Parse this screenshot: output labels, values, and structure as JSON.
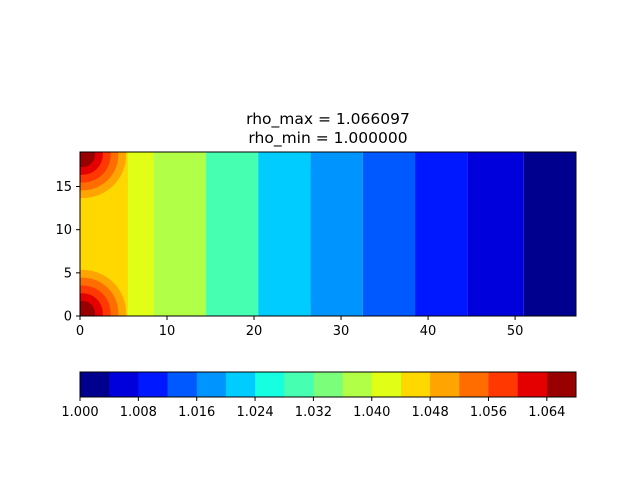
{
  "chart_data": {
    "type": "heatmap",
    "subtype": "filled-contour",
    "title_lines": [
      "rho_max = 1.066097",
      "rho_min = 1.000000"
    ],
    "xlabel": "",
    "ylabel": "",
    "xlim": [
      0,
      57
    ],
    "ylim": [
      0,
      19
    ],
    "x_ticks": [
      0,
      10,
      20,
      30,
      40,
      50
    ],
    "y_ticks": [
      0,
      5,
      10,
      15
    ],
    "colormap": "jet",
    "levels": [
      1.0,
      1.004,
      1.008,
      1.012,
      1.016,
      1.02,
      1.024,
      1.028,
      1.032,
      1.036,
      1.04,
      1.044,
      1.048,
      1.052,
      1.056,
      1.06,
      1.064,
      1.068
    ],
    "level_colors": [
      "#00008f",
      "#0000dd",
      "#0018ff",
      "#0058ff",
      "#0094ff",
      "#00ccff",
      "#16ffe1",
      "#46ffb1",
      "#7bff7b",
      "#b1ff46",
      "#e1ff16",
      "#ffd800",
      "#ffa400",
      "#ff6c00",
      "#ff3700",
      "#e50000",
      "#990000"
    ],
    "colorbar_ticks": [
      "1.000",
      "1.008",
      "1.016",
      "1.024",
      "1.032",
      "1.040",
      "1.048",
      "1.056",
      "1.064"
    ],
    "colorbar_location": "bottom",
    "field": {
      "x_bands": [
        {
          "x_from": 0,
          "x_to": 5.5,
          "value": 1.044
        },
        {
          "x_from": 5.5,
          "x_to": 8.5,
          "value": 1.04
        },
        {
          "x_from": 8.5,
          "x_to": 14.5,
          "value": 1.036
        },
        {
          "x_from": 14.5,
          "x_to": 20.5,
          "value": 1.028
        },
        {
          "x_from": 20.5,
          "x_to": 26.5,
          "value": 1.022
        },
        {
          "x_from": 26.5,
          "x_to": 32.5,
          "value": 1.017
        },
        {
          "x_from": 32.5,
          "x_to": 38.5,
          "value": 1.013
        },
        {
          "x_from": 38.5,
          "x_to": 44.5,
          "value": 1.009
        },
        {
          "x_from": 44.5,
          "x_to": 51,
          "value": 1.005
        },
        {
          "x_from": 51,
          "x_to": 57,
          "value": 1.002
        }
      ],
      "corner_peaks": [
        {
          "x": 0.3,
          "y": 18.7,
          "value": 1.066
        },
        {
          "x": 0.3,
          "y": 0.3,
          "value": 1.066
        }
      ]
    }
  }
}
